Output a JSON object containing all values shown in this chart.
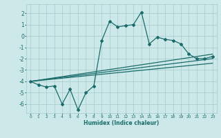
{
  "xlabel": "Humidex (Indice chaleur)",
  "background_color": "#cce8e8",
  "grid_color": "#aacfcf",
  "line_color": "#1a6b6b",
  "xlim": [
    -0.5,
    23.5
  ],
  "ylim": [
    -6.8,
    2.8
  ],
  "yticks": [
    -6,
    -5,
    -4,
    -3,
    -2,
    -1,
    0,
    1,
    2
  ],
  "xticks": [
    0,
    1,
    2,
    3,
    4,
    5,
    6,
    7,
    8,
    9,
    10,
    11,
    12,
    13,
    14,
    15,
    16,
    17,
    18,
    19,
    20,
    21,
    22,
    23
  ],
  "main_x": [
    0,
    1,
    2,
    3,
    4,
    5,
    6,
    7,
    8,
    9,
    10,
    11,
    12,
    13,
    14,
    15,
    16,
    17,
    18,
    19,
    20,
    21,
    22,
    23
  ],
  "main_y": [
    -4.0,
    -4.3,
    -4.5,
    -4.4,
    -6.0,
    -4.7,
    -6.5,
    -5.0,
    -4.4,
    -0.4,
    1.3,
    0.8,
    0.9,
    1.0,
    2.1,
    -0.7,
    -0.1,
    -0.3,
    -0.4,
    -0.7,
    -1.6,
    -2.0,
    -2.0,
    -1.8
  ],
  "trend1_x": [
    0,
    23
  ],
  "trend1_y": [
    -4.0,
    -1.6
  ],
  "trend2_x": [
    0,
    23
  ],
  "trend2_y": [
    -4.0,
    -2.0
  ],
  "trend3_x": [
    0,
    23
  ],
  "trend3_y": [
    -4.0,
    -2.4
  ],
  "marker_size": 2.0,
  "line_width": 0.9
}
